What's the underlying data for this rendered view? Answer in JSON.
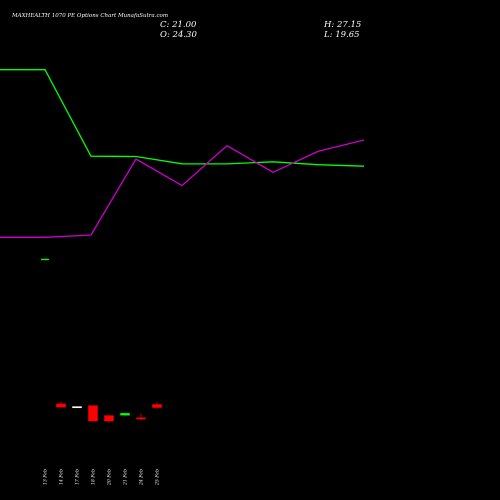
{
  "chart_data": {
    "type": "candlestick",
    "title": "MAXHEALTH 1070  PE Options  Chart MunafaSutra.com",
    "ohlc": {
      "close": "C: 21.00",
      "high": "H: 27.15",
      "open": "O: 24.30",
      "low": "L: 19.65"
    },
    "categories": [
      "13 Feb",
      "14 Feb",
      "17 Feb",
      "18 Feb",
      "20 Feb",
      "21 Feb",
      "24 Feb",
      "25 Feb"
    ],
    "candles": [
      {
        "open": 22.5,
        "high": 22.5,
        "low": 22.5,
        "close": 22.5
      },
      {
        "open": 25.0,
        "high": 27.5,
        "low": 21.0,
        "close": 21.5
      },
      {
        "open": 22.0,
        "high": 22.0,
        "low": 22.0,
        "close": 22.0
      },
      {
        "open": 23.0,
        "high": 23.0,
        "low": 6.0,
        "close": 6.0
      },
      {
        "open": 12.0,
        "high": 12.0,
        "low": 4.0,
        "close": 6.0
      },
      {
        "open": 12.5,
        "high": 15.0,
        "low": 12.0,
        "close": 14.5
      },
      {
        "open": 9.5,
        "high": 14.0,
        "low": 7.0,
        "close": 9.0
      },
      {
        "open": 24.3,
        "high": 27.15,
        "low": 19.65,
        "close": 21.0
      }
    ],
    "series": [
      {
        "color": "#00ff00",
        "line_values": [
          870,
          870,
          415,
          413,
          375,
          374,
          385,
          370,
          362
        ]
      },
      {
        "color": "#cc00cc",
        "line_values": [
          -12,
          -12,
          0,
          400,
          260,
          470,
          330,
          440,
          500
        ]
      }
    ],
    "colors": {
      "background": "#000000",
      "down_candle": "#ff0000",
      "up_candle": "#00ff00",
      "neutral_candle": "#ffffff"
    }
  }
}
